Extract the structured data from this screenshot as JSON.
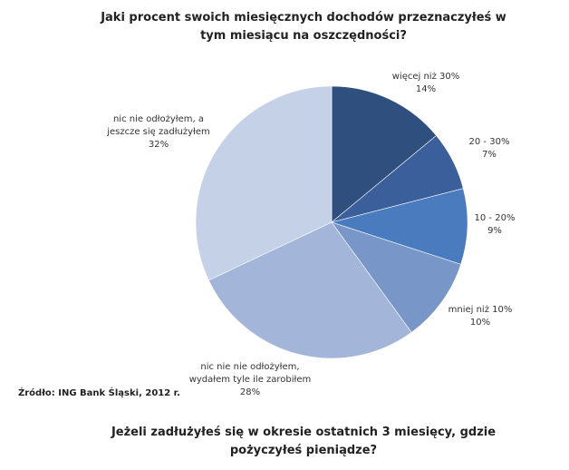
{
  "chart_data": {
    "type": "pie",
    "title": "Jaki procent swoich miesięcznych dochodów przeznaczyłeś w tym miesiącu na oszczędności?",
    "categories": [
      "więcej niż 30%",
      "20 - 30%",
      "10 - 20%",
      "mniej niż 10%",
      "nic nie nie odłożyłem, wydałem tyle ile zarobiłem",
      "nic nie odłożyłem, a jeszcze się zadłużyłem"
    ],
    "values": [
      14,
      7,
      9,
      10,
      28,
      32
    ],
    "value_labels": [
      "14%",
      "7%",
      "9%",
      "10%",
      "28%",
      "32%"
    ],
    "colors": [
      "#2f4f7f",
      "#3b5f9a",
      "#4a7bbf",
      "#7896c8",
      "#a3b6d9",
      "#c5d1e6"
    ]
  },
  "source": "Źródło: ING Bank Śląski, 2012 r.",
  "next_question": "Jeżeli zadłużyłeś się w okresie ostatnich 3 miesięcy, gdzie pożyczyłeś pieniądze?"
}
